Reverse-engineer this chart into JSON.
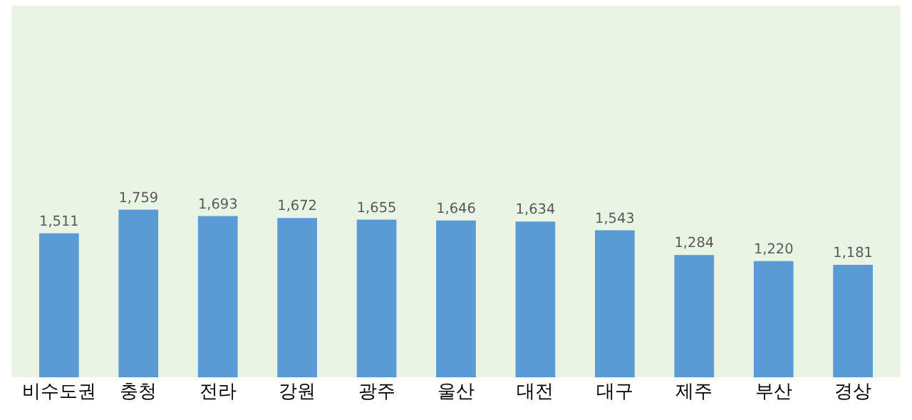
{
  "chart_data": {
    "type": "bar",
    "categories": [
      "비수도권",
      "충청",
      "전라",
      "강원",
      "광주",
      "울산",
      "대전",
      "대구",
      "제주",
      "부산",
      "경상"
    ],
    "values": [
      1511,
      1759,
      1693,
      1672,
      1655,
      1646,
      1634,
      1543,
      1284,
      1220,
      1181
    ],
    "value_labels": [
      "1,511",
      "1,759",
      "1,693",
      "1,672",
      "1,655",
      "1,646",
      "1,634",
      "1,543",
      "1,284",
      "1,220",
      "1,181"
    ],
    "color": "#5b9bd5",
    "ylim": [
      0,
      3900
    ],
    "tick_labels": "x"
  }
}
